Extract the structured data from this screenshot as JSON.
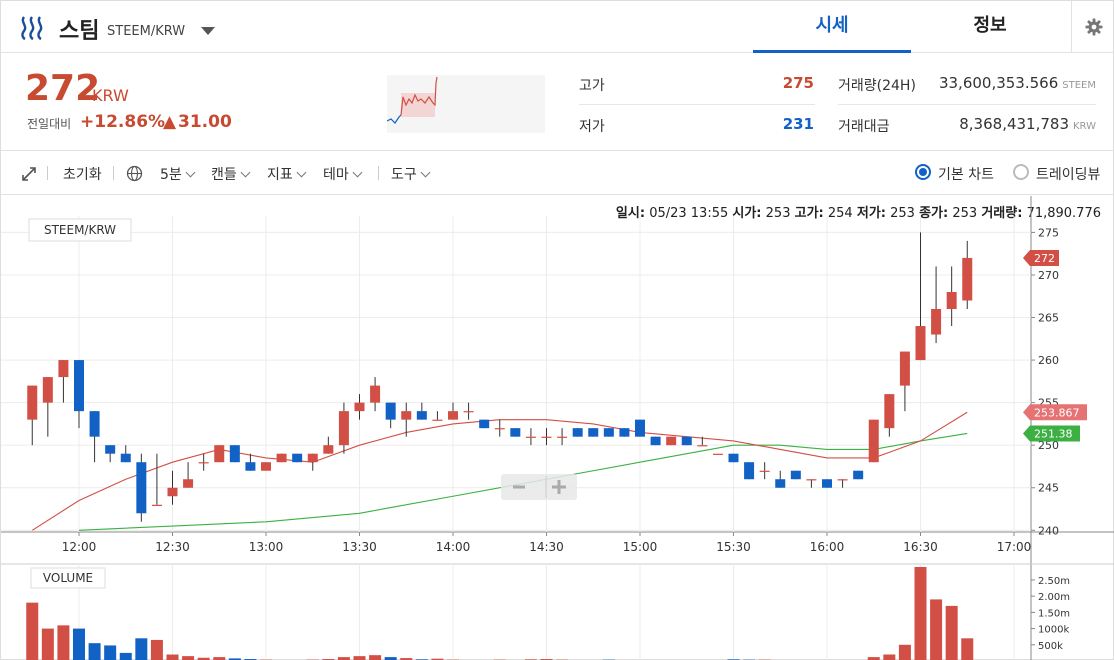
{
  "header": {
    "coin_name": "스팀",
    "pair": "STEEM/KRW",
    "tabs": [
      {
        "label": "시세"
      },
      {
        "label": "정보"
      }
    ]
  },
  "summary": {
    "price": "272",
    "unit": "KRW",
    "change_label": "전일대비",
    "change_pct": "+12.86%",
    "change_arrow": "▲",
    "change_amt": "31.00",
    "high_label": "고가",
    "high": "275",
    "low_label": "저가",
    "low": "231",
    "volume_label": "거래량(24H)",
    "volume": "33,600,353.566",
    "volume_unit": "STEEM",
    "value_label": "거래대금",
    "value": "8,368,431,783",
    "value_unit": "KRW"
  },
  "toolbar": {
    "reset": "초기화",
    "interval": "5분",
    "candle": "캔들",
    "indicator": "지표",
    "theme": "테마",
    "tools": "도구",
    "basic_chart": "기본 차트",
    "tradingview": "트레이딩뷰"
  },
  "ohlc_bar": {
    "time_label": "일시:",
    "time": "05/23 13:55",
    "open_label": "시가:",
    "open": "253",
    "high_label": "고가:",
    "high": "254",
    "low_label": "저가:",
    "low": "253",
    "close_label": "종가:",
    "close": "253",
    "vol_label": "거래량:",
    "vol": "71,890.776"
  },
  "colors": {
    "up": "#d24f45",
    "down": "#1261c4",
    "ma_short": "#d24f45",
    "ma_long": "#3cb043",
    "accent": "#1261c4"
  },
  "chart_data": {
    "type": "candlestick",
    "title": "STEEM/KRW",
    "volume_title": "VOLUME",
    "x_ticks": [
      "12:00",
      "12:30",
      "13:00",
      "13:30",
      "14:00",
      "14:30",
      "15:00",
      "15:30",
      "16:00",
      "16:30",
      "17:00"
    ],
    "y_ticks": [
      240,
      245,
      250,
      255,
      260,
      265,
      270,
      275
    ],
    "ylim": [
      239.8,
      275.4
    ],
    "vol_ticks": [
      "500k",
      "1000k",
      "1.50m",
      "2.00m",
      "2.50m"
    ],
    "vol_tick_values": [
      500000,
      1000000,
      1500000,
      2000000,
      2500000
    ],
    "vol_max": 2900000,
    "price_tags": [
      {
        "label": "272",
        "value": 272,
        "color": "#d24f45"
      },
      {
        "label": "253.867",
        "value": 253.867,
        "color": "#e57373"
      },
      {
        "label": "251.38",
        "value": 251.38,
        "color": "#3cb043"
      }
    ],
    "time_start": "11:45",
    "candles": [
      {
        "t": "11:45",
        "o": 253,
        "h": 257,
        "l": 250,
        "c": 257,
        "v": 1800000
      },
      {
        "t": "11:50",
        "o": 255,
        "h": 258,
        "l": 251,
        "c": 258,
        "v": 1000000
      },
      {
        "t": "11:55",
        "o": 258,
        "h": 260,
        "l": 255,
        "c": 260,
        "v": 1100000
      },
      {
        "t": "12:00",
        "o": 260,
        "h": 260,
        "l": 252,
        "c": 254,
        "v": 1000000
      },
      {
        "t": "12:05",
        "o": 254,
        "h": 254,
        "l": 248,
        "c": 251,
        "v": 550000
      },
      {
        "t": "12:10",
        "o": 250,
        "h": 250,
        "l": 248,
        "c": 249,
        "v": 480000
      },
      {
        "t": "12:15",
        "o": 249,
        "h": 250,
        "l": 248,
        "c": 248,
        "v": 250000
      },
      {
        "t": "12:20",
        "o": 248,
        "h": 249,
        "l": 241,
        "c": 242,
        "v": 700000
      },
      {
        "t": "12:25",
        "o": 243,
        "h": 249,
        "l": 243,
        "c": 243,
        "v": 650000
      },
      {
        "t": "12:30",
        "o": 244,
        "h": 247,
        "l": 243,
        "c": 245,
        "v": 200000
      },
      {
        "t": "12:35",
        "o": 245,
        "h": 248,
        "l": 245,
        "c": 246,
        "v": 150000
      },
      {
        "t": "12:40",
        "o": 248,
        "h": 249,
        "l": 247,
        "c": 248,
        "v": 100000
      },
      {
        "t": "12:45",
        "o": 248,
        "h": 250,
        "l": 248,
        "c": 250,
        "v": 120000
      },
      {
        "t": "12:50",
        "o": 250,
        "h": 250,
        "l": 248,
        "c": 248,
        "v": 80000
      },
      {
        "t": "12:55",
        "o": 248,
        "h": 249,
        "l": 247,
        "c": 247,
        "v": 60000
      },
      {
        "t": "13:00",
        "o": 247,
        "h": 248,
        "l": 247,
        "c": 248,
        "v": 40000
      },
      {
        "t": "13:05",
        "o": 248,
        "h": 249,
        "l": 248,
        "c": 249,
        "v": 30000
      },
      {
        "t": "13:10",
        "o": 249,
        "h": 249,
        "l": 248,
        "c": 248,
        "v": 30000
      },
      {
        "t": "13:15",
        "o": 248,
        "h": 249,
        "l": 247,
        "c": 249,
        "v": 40000
      },
      {
        "t": "13:20",
        "o": 249,
        "h": 251,
        "l": 249,
        "c": 250,
        "v": 60000
      },
      {
        "t": "13:25",
        "o": 250,
        "h": 255,
        "l": 249,
        "c": 254,
        "v": 120000
      },
      {
        "t": "13:30",
        "o": 254,
        "h": 256,
        "l": 253,
        "c": 255,
        "v": 150000
      },
      {
        "t": "13:35",
        "o": 255,
        "h": 258,
        "l": 254,
        "c": 257,
        "v": 180000
      },
      {
        "t": "13:40",
        "o": 255,
        "h": 255,
        "l": 252,
        "c": 253,
        "v": 120000
      },
      {
        "t": "13:45",
        "o": 253,
        "h": 255,
        "l": 251,
        "c": 254,
        "v": 90000
      },
      {
        "t": "13:50",
        "o": 254,
        "h": 255,
        "l": 253,
        "c": 253,
        "v": 50000
      },
      {
        "t": "13:55",
        "o": 253,
        "h": 254,
        "l": 253,
        "c": 253,
        "v": 71890
      },
      {
        "t": "14:00",
        "o": 253,
        "h": 255,
        "l": 253,
        "c": 254,
        "v": 40000
      },
      {
        "t": "14:05",
        "o": 254,
        "h": 255,
        "l": 253,
        "c": 254,
        "v": 30000
      },
      {
        "t": "14:10",
        "o": 253,
        "h": 253,
        "l": 252,
        "c": 252,
        "v": 30000
      },
      {
        "t": "14:15",
        "o": 252,
        "h": 253,
        "l": 251,
        "c": 252,
        "v": 40000
      },
      {
        "t": "14:20",
        "o": 252,
        "h": 252,
        "l": 251,
        "c": 251,
        "v": 30000
      },
      {
        "t": "14:25",
        "o": 251,
        "h": 252,
        "l": 250,
        "c": 251,
        "v": 50000
      },
      {
        "t": "14:30",
        "o": 251,
        "h": 252,
        "l": 250,
        "c": 251,
        "v": 60000
      },
      {
        "t": "14:35",
        "o": 251,
        "h": 252,
        "l": 250,
        "c": 251,
        "v": 40000
      },
      {
        "t": "14:40",
        "o": 252,
        "h": 252,
        "l": 251,
        "c": 251,
        "v": 30000
      },
      {
        "t": "14:45",
        "o": 252,
        "h": 252,
        "l": 251,
        "c": 251,
        "v": 30000
      },
      {
        "t": "14:50",
        "o": 252,
        "h": 252,
        "l": 251,
        "c": 251,
        "v": 40000
      },
      {
        "t": "14:55",
        "o": 252,
        "h": 252,
        "l": 251,
        "c": 251,
        "v": 30000
      },
      {
        "t": "15:00",
        "o": 253,
        "h": 253,
        "l": 251,
        "c": 251,
        "v": 30000
      },
      {
        "t": "15:05",
        "o": 251,
        "h": 251,
        "l": 250,
        "c": 250,
        "v": 30000
      },
      {
        "t": "15:10",
        "o": 250,
        "h": 251,
        "l": 250,
        "c": 251,
        "v": 30000
      },
      {
        "t": "15:15",
        "o": 251,
        "h": 251,
        "l": 250,
        "c": 250,
        "v": 20000
      },
      {
        "t": "15:20",
        "o": 250,
        "h": 251,
        "l": 250,
        "c": 250,
        "v": 20000
      },
      {
        "t": "15:25",
        "o": 249,
        "h": 249,
        "l": 249,
        "c": 249,
        "v": 30000
      },
      {
        "t": "15:30",
        "o": 249,
        "h": 249,
        "l": 248,
        "c": 248,
        "v": 50000
      },
      {
        "t": "15:35",
        "o": 248,
        "h": 248,
        "l": 246,
        "c": 246,
        "v": 40000
      },
      {
        "t": "15:40",
        "o": 247,
        "h": 248,
        "l": 246,
        "c": 247,
        "v": 40000
      },
      {
        "t": "15:45",
        "o": 246,
        "h": 247,
        "l": 245,
        "c": 245,
        "v": 30000
      },
      {
        "t": "15:50",
        "o": 247,
        "h": 247,
        "l": 246,
        "c": 246,
        "v": 30000
      },
      {
        "t": "15:55",
        "o": 246,
        "h": 246,
        "l": 245,
        "c": 246,
        "v": 20000
      },
      {
        "t": "16:00",
        "o": 246,
        "h": 246,
        "l": 245,
        "c": 245,
        "v": 20000
      },
      {
        "t": "16:05",
        "o": 246,
        "h": 246,
        "l": 245,
        "c": 246,
        "v": 20000
      },
      {
        "t": "16:10",
        "o": 247,
        "h": 247,
        "l": 246,
        "c": 246,
        "v": 30000
      },
      {
        "t": "16:15",
        "o": 248,
        "h": 253,
        "l": 248,
        "c": 253,
        "v": 120000
      },
      {
        "t": "16:20",
        "o": 252,
        "h": 256,
        "l": 251,
        "c": 256,
        "v": 200000
      },
      {
        "t": "16:25",
        "o": 257,
        "h": 261,
        "l": 254,
        "c": 261,
        "v": 500000
      },
      {
        "t": "16:30",
        "o": 260,
        "h": 275,
        "l": 260,
        "c": 264,
        "v": 2900000
      },
      {
        "t": "16:35",
        "o": 263,
        "h": 271,
        "l": 262,
        "c": 266,
        "v": 1900000
      },
      {
        "t": "16:40",
        "o": 266,
        "h": 271,
        "l": 264,
        "c": 268,
        "v": 1700000
      },
      {
        "t": "16:45",
        "o": 267,
        "h": 274,
        "l": 266,
        "c": 272,
        "v": 700000
      }
    ],
    "ma_short": [
      {
        "t": "11:45",
        "v": 240
      },
      {
        "t": "12:00",
        "v": 243.5
      },
      {
        "t": "12:15",
        "v": 246
      },
      {
        "t": "12:30",
        "v": 248
      },
      {
        "t": "12:45",
        "v": 249.5
      },
      {
        "t": "13:00",
        "v": 248.5
      },
      {
        "t": "13:15",
        "v": 248
      },
      {
        "t": "13:30",
        "v": 250
      },
      {
        "t": "13:45",
        "v": 251.5
      },
      {
        "t": "14:00",
        "v": 252.5
      },
      {
        "t": "14:15",
        "v": 253
      },
      {
        "t": "14:30",
        "v": 253
      },
      {
        "t": "14:45",
        "v": 252.5
      },
      {
        "t": "15:00",
        "v": 251.5
      },
      {
        "t": "15:15",
        "v": 251
      },
      {
        "t": "15:30",
        "v": 250.5
      },
      {
        "t": "15:45",
        "v": 249.5
      },
      {
        "t": "16:00",
        "v": 248.5
      },
      {
        "t": "16:15",
        "v": 248.5
      },
      {
        "t": "16:30",
        "v": 250.5
      },
      {
        "t": "16:45",
        "v": 253.867
      }
    ],
    "ma_long": [
      {
        "t": "12:00",
        "v": 240
      },
      {
        "t": "12:30",
        "v": 240.5
      },
      {
        "t": "13:00",
        "v": 241
      },
      {
        "t": "13:30",
        "v": 242
      },
      {
        "t": "14:00",
        "v": 244
      },
      {
        "t": "14:30",
        "v": 246
      },
      {
        "t": "15:00",
        "v": 248
      },
      {
        "t": "15:30",
        "v": 250
      },
      {
        "t": "15:45",
        "v": 250
      },
      {
        "t": "16:00",
        "v": 249.5
      },
      {
        "t": "16:15",
        "v": 249.5
      },
      {
        "t": "16:30",
        "v": 250.5
      },
      {
        "t": "16:45",
        "v": 251.38
      }
    ]
  }
}
